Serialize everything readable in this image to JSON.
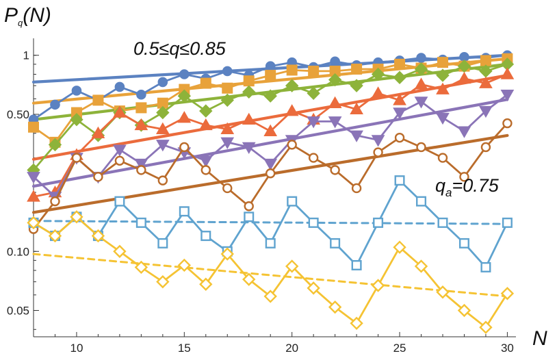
{
  "chart_data": {
    "type": "line",
    "title": "",
    "xlabel": "N",
    "ylabel": "P",
    "ylabel_sub": "q",
    "ylabel_suffix": "(N)",
    "y_scale": "log",
    "xlim": [
      8,
      30.4
    ],
    "ylim": [
      0.0367,
      1.22
    ],
    "x_ticks": [
      10,
      15,
      20,
      25,
      30
    ],
    "x_tick_labels": [
      "10",
      "15",
      "20",
      "25",
      "30"
    ],
    "y_ticks": [
      0.05,
      0.1,
      0.5,
      1
    ],
    "y_tick_labels": [
      "0.05",
      "0.10",
      "0.50",
      "1"
    ],
    "grid": false,
    "annotations": [
      {
        "text": "0.5≤q≤0.85",
        "target": "solid-fit-lines"
      },
      {
        "text": "q",
        "sub": "a",
        "suffix": "=0.75",
        "target": "dashed-fit-lines"
      }
    ],
    "fits": [
      {
        "color": "#5B82C1",
        "dash": false,
        "x": [
          8,
          30
        ],
        "y": [
          0.73,
          1.0
        ]
      },
      {
        "color": "#E8A23A",
        "dash": false,
        "x": [
          8,
          30
        ],
        "y": [
          0.57,
          0.96
        ]
      },
      {
        "color": "#8DB33A",
        "dash": false,
        "x": [
          8,
          30
        ],
        "y": [
          0.47,
          0.9
        ]
      },
      {
        "color": "#EB6B3C",
        "dash": false,
        "x": [
          8,
          30
        ],
        "y": [
          0.295,
          0.79
        ]
      },
      {
        "color": "#8A74B7",
        "dash": false,
        "x": [
          8,
          30
        ],
        "y": [
          0.215,
          0.595
        ]
      },
      {
        "color": "#BA6C2B",
        "dash": false,
        "x": [
          8,
          30
        ],
        "y": [
          0.158,
          0.39
        ]
      },
      {
        "color": "#5FA3CF",
        "dash": true,
        "x": [
          8,
          30
        ],
        "y": [
          0.143,
          0.138
        ]
      },
      {
        "color": "#F5C333",
        "dash": true,
        "x": [
          8,
          30
        ],
        "y": [
          0.097,
          0.059
        ]
      }
    ],
    "series": [
      {
        "color": "#5B82C1",
        "marker": "circle",
        "filled": true,
        "x": [
          8,
          9,
          10,
          11,
          12,
          13,
          14,
          15,
          16,
          17,
          18,
          19,
          20,
          21,
          22,
          23,
          24,
          25,
          26,
          27,
          28,
          29,
          30
        ],
        "y": [
          0.47,
          0.56,
          0.66,
          0.59,
          0.69,
          0.63,
          0.73,
          0.8,
          0.76,
          0.83,
          0.79,
          0.88,
          0.92,
          0.87,
          0.93,
          0.89,
          0.92,
          0.94,
          0.97,
          0.95,
          0.98,
          0.97,
          1.0
        ]
      },
      {
        "color": "#E8A23A",
        "marker": "square",
        "filled": true,
        "x": [
          8,
          9,
          10,
          11,
          12,
          13,
          14,
          15,
          16,
          17,
          18,
          19,
          20,
          21,
          22,
          23,
          24,
          25,
          26,
          27,
          28,
          29,
          30
        ],
        "y": [
          0.43,
          0.36,
          0.51,
          0.59,
          0.52,
          0.54,
          0.57,
          0.67,
          0.72,
          0.68,
          0.74,
          0.79,
          0.84,
          0.83,
          0.83,
          0.85,
          0.85,
          0.9,
          0.86,
          0.92,
          0.88,
          0.94,
          0.96
        ]
      },
      {
        "color": "#8DB33A",
        "marker": "diamond",
        "filled": true,
        "x": [
          8,
          9,
          10,
          11,
          12,
          13,
          14,
          15,
          16,
          17,
          18,
          19,
          20,
          21,
          22,
          23,
          24,
          25,
          26,
          27,
          28,
          29,
          30
        ],
        "y": [
          0.26,
          0.35,
          0.47,
          0.39,
          0.51,
          0.44,
          0.51,
          0.62,
          0.52,
          0.59,
          0.65,
          0.62,
          0.7,
          0.64,
          0.75,
          0.7,
          0.8,
          0.77,
          0.85,
          0.79,
          0.88,
          0.83,
          0.9
        ]
      },
      {
        "color": "#EB6B3C",
        "marker": "triangle-up",
        "filled": true,
        "x": [
          8,
          9,
          10,
          11,
          12,
          13,
          14,
          15,
          16,
          17,
          18,
          19,
          20,
          21,
          22,
          23,
          24,
          25,
          26,
          27,
          28,
          29,
          30
        ],
        "y": [
          0.19,
          0.2,
          0.31,
          0.4,
          0.51,
          0.44,
          0.42,
          0.48,
          0.44,
          0.42,
          0.47,
          0.41,
          0.52,
          0.47,
          0.57,
          0.53,
          0.64,
          0.59,
          0.71,
          0.67,
          0.76,
          0.72,
          0.8
        ]
      },
      {
        "color": "#8A74B7",
        "marker": "triangle-down",
        "filled": true,
        "x": [
          8,
          9,
          10,
          11,
          12,
          13,
          14,
          15,
          16,
          17,
          18,
          19,
          20,
          21,
          22,
          23,
          24,
          25,
          26,
          27,
          28,
          29,
          30
        ],
        "y": [
          0.24,
          0.19,
          0.3,
          0.24,
          0.33,
          0.28,
          0.35,
          0.32,
          0.29,
          0.36,
          0.34,
          0.28,
          0.37,
          0.46,
          0.46,
          0.39,
          0.37,
          0.51,
          0.58,
          0.48,
          0.41,
          0.52,
          0.63
        ]
      },
      {
        "color": "#BA6C2B",
        "marker": "circle",
        "filled": false,
        "x": [
          8,
          9,
          10,
          11,
          12,
          13,
          14,
          15,
          16,
          17,
          18,
          19,
          20,
          21,
          22,
          23,
          24,
          25,
          26,
          27,
          28,
          29,
          30
        ],
        "y": [
          0.13,
          0.18,
          0.3,
          0.24,
          0.29,
          0.26,
          0.23,
          0.34,
          0.26,
          0.21,
          0.17,
          0.25,
          0.35,
          0.3,
          0.26,
          0.21,
          0.32,
          0.38,
          0.34,
          0.3,
          0.24,
          0.34,
          0.45
        ]
      },
      {
        "color": "#5FA3CF",
        "marker": "square",
        "filled": false,
        "x": [
          8,
          9,
          10,
          11,
          12,
          13,
          14,
          15,
          16,
          17,
          18,
          19,
          20,
          21,
          22,
          23,
          24,
          25,
          26,
          27,
          28,
          29,
          30
        ],
        "y": [
          0.14,
          0.12,
          0.15,
          0.12,
          0.18,
          0.14,
          0.11,
          0.16,
          0.12,
          0.1,
          0.15,
          0.11,
          0.18,
          0.14,
          0.11,
          0.085,
          0.14,
          0.23,
          0.18,
          0.14,
          0.11,
          0.083,
          0.14
        ]
      },
      {
        "color": "#F5C333",
        "marker": "diamond",
        "filled": false,
        "x": [
          8,
          9,
          10,
          11,
          12,
          13,
          14,
          15,
          16,
          17,
          18,
          19,
          20,
          21,
          22,
          23,
          24,
          25,
          26,
          27,
          28,
          29,
          30
        ],
        "y": [
          0.14,
          0.12,
          0.15,
          0.12,
          0.1,
          0.083,
          0.07,
          0.085,
          0.068,
          0.097,
          0.072,
          0.059,
          0.084,
          0.065,
          0.052,
          0.043,
          0.067,
          0.105,
          0.084,
          0.062,
          0.05,
          0.041,
          0.061
        ]
      }
    ]
  }
}
